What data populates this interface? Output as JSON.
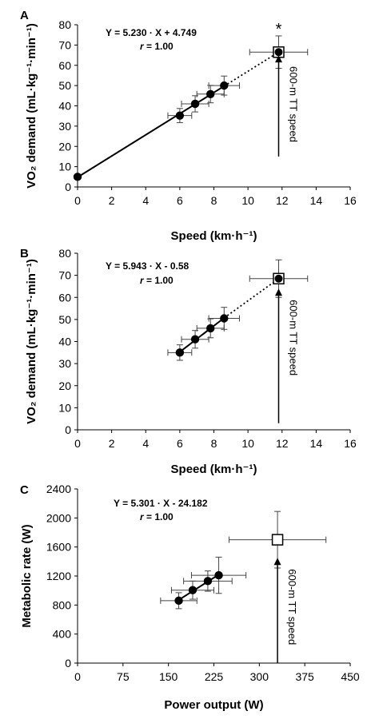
{
  "chart_data": [
    {
      "panel": "A",
      "type": "scatter",
      "xlabel": "Speed (km·h⁻¹)",
      "ylabel": "VO₂ demand (mL·kg⁻¹·min⁻¹)",
      "xlim": [
        0,
        16
      ],
      "ylim": [
        0,
        80
      ],
      "xticks": [
        0,
        2,
        4,
        6,
        8,
        10,
        12,
        14,
        16
      ],
      "yticks": [
        0,
        10,
        20,
        30,
        40,
        50,
        60,
        70,
        80
      ],
      "equation": "Y = 5.230 · X + 4.749",
      "r_label": "r",
      "r_value": " = 1.00",
      "points": [
        {
          "x": 0,
          "y": 5.0,
          "xerr": 0,
          "yerr": 0
        },
        {
          "x": 6.0,
          "y": 35.2,
          "xerr": 0.7,
          "yerr": 3.5
        },
        {
          "x": 6.9,
          "y": 41.0,
          "xerr": 0.8,
          "yerr": 4.0
        },
        {
          "x": 7.8,
          "y": 45.8,
          "xerr": 0.8,
          "yerr": 4.3
        },
        {
          "x": 8.6,
          "y": 50.0,
          "xerr": 0.9,
          "yerr": 4.7
        }
      ],
      "solid_line": {
        "x": [
          0,
          8.6
        ]
      },
      "dotted_line": {
        "x": [
          8.6,
          11.8
        ]
      },
      "open_square": {
        "x": 11.8,
        "y": 66.5,
        "xerr": 1.7,
        "yerr": 8.0
      },
      "filled_point": {
        "x": 11.8,
        "y": 66.5
      },
      "significance_marker": "*",
      "arrow_x": 11.8,
      "arrow_y": [
        15,
        65
      ],
      "arrow_label": "600-m TT speed"
    },
    {
      "panel": "B",
      "type": "scatter",
      "xlabel": "Speed (km·h⁻¹)",
      "ylabel": "VO₂ demand (mL·kg⁻¹·min⁻¹)",
      "xlim": [
        0,
        16
      ],
      "ylim": [
        0,
        80
      ],
      "xticks": [
        0,
        2,
        4,
        6,
        8,
        10,
        12,
        14,
        16
      ],
      "yticks": [
        0,
        10,
        20,
        30,
        40,
        50,
        60,
        70,
        80
      ],
      "equation": "Y = 5.943 · X - 0.58",
      "r_label": "r",
      "r_value": " = 1.00",
      "points": [
        {
          "x": 6.0,
          "y": 35.0,
          "xerr": 0.7,
          "yerr": 3.5
        },
        {
          "x": 6.9,
          "y": 41.0,
          "xerr": 0.8,
          "yerr": 4.0
        },
        {
          "x": 7.8,
          "y": 46.0,
          "xerr": 0.8,
          "yerr": 4.3
        },
        {
          "x": 8.6,
          "y": 50.5,
          "xerr": 0.9,
          "yerr": 5.0
        }
      ],
      "solid_line": {
        "x": [
          6.0,
          8.6
        ]
      },
      "dotted_line": {
        "x": [
          8.6,
          11.8
        ]
      },
      "open_square": {
        "x": 11.8,
        "y": 68.5,
        "xerr": 1.7,
        "yerr": 8.5
      },
      "filled_point": {
        "x": 11.8,
        "y": 68.5
      },
      "arrow_x": 11.8,
      "arrow_y": [
        3,
        64
      ],
      "arrow_label": "600-m TT speed"
    },
    {
      "panel": "C",
      "type": "scatter",
      "xlabel": "Power output (W)",
      "ylabel": "Metabolic rate (W)",
      "xlim": [
        0,
        450
      ],
      "ylim": [
        0,
        2400
      ],
      "xticks": [
        0,
        75,
        150,
        225,
        300,
        375,
        450
      ],
      "yticks": [
        0,
        400,
        800,
        1200,
        1600,
        2000,
        2400
      ],
      "equation": "Y = 5.301 · X - 24.182",
      "r_label": "r",
      "r_value": " = 1.00",
      "points": [
        {
          "x": 167,
          "y": 860,
          "xerr": 30,
          "yerr": 110
        },
        {
          "x": 190,
          "y": 1005,
          "xerr": 35,
          "yerr": 125
        },
        {
          "x": 215,
          "y": 1130,
          "xerr": 40,
          "yerr": 140
        },
        {
          "x": 233,
          "y": 1210,
          "xerr": 45,
          "yerr": 250
        }
      ],
      "solid_line": {
        "x": [
          167,
          233
        ]
      },
      "open_square": {
        "x": 330,
        "y": 1700,
        "xerr": 80,
        "yerr": 390
      },
      "arrow_x": 330,
      "arrow_y": [
        0,
        1450
      ],
      "arrow_label": "600-m TT speed"
    }
  ]
}
